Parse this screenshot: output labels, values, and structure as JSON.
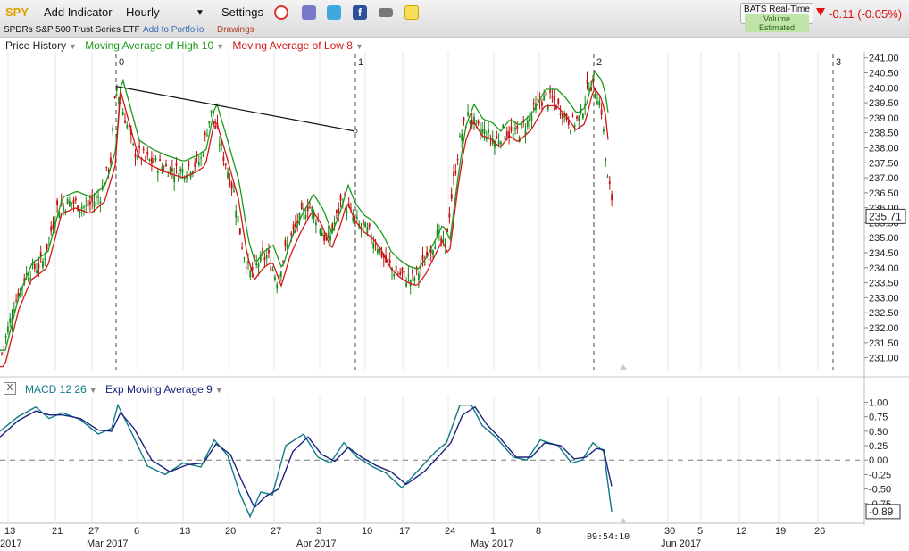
{
  "toolbar": {
    "symbol": "SPY",
    "add_indicator": "Add Indicator",
    "interval": "Hourly",
    "settings": "Settings",
    "security_name": "SPDRs S&P 500 Trust Series ETF",
    "add_to_portfolio": "Add to Portfolio",
    "drawings": "Drawings",
    "feed_line1": "BATS Real-Time",
    "feed_line2": "Volume Estimated",
    "change": "-0.11 (-0.05%)"
  },
  "icons": [
    "alarm-clock-icon",
    "database-icon",
    "twitter-icon",
    "facebook-icon",
    "camera-icon",
    "sticky-note-icon"
  ],
  "legend_price": [
    {
      "label": "Price History",
      "color": "#222222"
    },
    {
      "label": "Moving Average of High 10",
      "color": "#1a9a1a"
    },
    {
      "label": "Moving Average of Low 8",
      "color": "#d01818"
    }
  ],
  "legend_macd": [
    {
      "label": "MACD 12 26",
      "color": "#0f7a86"
    },
    {
      "label": "Exp Moving Average 9",
      "color": "#1a237e"
    }
  ],
  "cursor_time": "09:54:10",
  "chart_data": [
    {
      "type": "candlestick",
      "y_ticks": [
        "241.00",
        "240.50",
        "240.00",
        "239.50",
        "239.00",
        "238.50",
        "238.00",
        "237.50",
        "237.00",
        "236.50",
        "236.00",
        "235.50",
        "235.00",
        "234.50",
        "234.00",
        "233.50",
        "233.00",
        "232.50",
        "232.00",
        "231.50",
        "231.00"
      ],
      "ylim": [
        230.6,
        241.2
      ],
      "last_price": "235.71",
      "cycle_markers": [
        "0",
        "1",
        "2",
        "3"
      ],
      "path": [
        [
          0,
          230.9
        ],
        [
          16,
          232.8
        ],
        [
          30,
          233.8
        ],
        [
          48,
          234.2
        ],
        [
          64,
          236.0
        ],
        [
          80,
          236.2
        ],
        [
          96,
          236.0
        ],
        [
          112,
          236.4
        ],
        [
          124,
          237.6
        ],
        [
          130,
          240.1
        ],
        [
          140,
          239.0
        ],
        [
          150,
          237.9
        ],
        [
          165,
          237.6
        ],
        [
          180,
          237.4
        ],
        [
          200,
          237.2
        ],
        [
          215,
          237.4
        ],
        [
          225,
          237.6
        ],
        [
          236,
          239.2
        ],
        [
          246,
          238.2
        ],
        [
          262,
          236.5
        ],
        [
          272,
          234.6
        ],
        [
          280,
          233.8
        ],
        [
          290,
          234.2
        ],
        [
          300,
          234.4
        ],
        [
          310,
          233.6
        ],
        [
          320,
          234.6
        ],
        [
          332,
          235.4
        ],
        [
          345,
          236.1
        ],
        [
          356,
          235.6
        ],
        [
          366,
          234.8
        ],
        [
          376,
          235.6
        ],
        [
          384,
          236.4
        ],
        [
          392,
          235.8
        ],
        [
          402,
          235.4
        ],
        [
          412,
          235.2
        ],
        [
          422,
          234.8
        ],
        [
          432,
          234.2
        ],
        [
          442,
          233.9
        ],
        [
          452,
          233.7
        ],
        [
          462,
          233.6
        ],
        [
          472,
          234.0
        ],
        [
          482,
          234.6
        ],
        [
          490,
          235.1
        ],
        [
          498,
          234.6
        ],
        [
          508,
          236.9
        ],
        [
          516,
          238.4
        ],
        [
          525,
          239.1
        ],
        [
          535,
          238.6
        ],
        [
          545,
          238.5
        ],
        [
          555,
          238.2
        ],
        [
          565,
          238.6
        ],
        [
          575,
          238.4
        ],
        [
          590,
          238.8
        ],
        [
          605,
          239.6
        ],
        [
          618,
          239.6
        ],
        [
          628,
          239.3
        ],
        [
          640,
          238.8
        ],
        [
          650,
          239.0
        ],
        [
          660,
          240.2
        ],
        [
          668,
          239.9
        ],
        [
          674,
          239.2
        ],
        [
          680,
          237.0
        ],
        [
          686,
          236.2
        ]
      ],
      "ma_high_offset": 0.35,
      "ma_low_offset": -0.2
    },
    {
      "type": "line",
      "y_ticks": [
        "1.00",
        "0.75",
        "0.50",
        "0.25",
        "0.00",
        "-0.25",
        "-0.50",
        "-0.75"
      ],
      "ylim": [
        -1.0,
        1.1
      ],
      "last_value": "-0.89",
      "series": [
        {
          "name": "MACD 12 26",
          "color": "#0f7a86",
          "points": [
            [
              0,
              0.5
            ],
            [
              20,
              0.75
            ],
            [
              40,
              0.92
            ],
            [
              55,
              0.72
            ],
            [
              70,
              0.82
            ],
            [
              90,
              0.7
            ],
            [
              110,
              0.45
            ],
            [
              125,
              0.55
            ],
            [
              132,
              0.95
            ],
            [
              145,
              0.55
            ],
            [
              165,
              -0.1
            ],
            [
              185,
              -0.25
            ],
            [
              205,
              -0.05
            ],
            [
              225,
              -0.12
            ],
            [
              240,
              0.35
            ],
            [
              255,
              0.08
            ],
            [
              268,
              -0.55
            ],
            [
              280,
              -0.98
            ],
            [
              292,
              -0.55
            ],
            [
              305,
              -0.6
            ],
            [
              320,
              0.25
            ],
            [
              340,
              0.45
            ],
            [
              356,
              0.05
            ],
            [
              370,
              -0.05
            ],
            [
              385,
              0.3
            ],
            [
              400,
              0.05
            ],
            [
              418,
              -0.12
            ],
            [
              432,
              -0.22
            ],
            [
              450,
              -0.48
            ],
            [
              470,
              -0.15
            ],
            [
              488,
              0.15
            ],
            [
              500,
              0.3
            ],
            [
              515,
              0.95
            ],
            [
              528,
              0.95
            ],
            [
              540,
              0.6
            ],
            [
              555,
              0.4
            ],
            [
              575,
              0.05
            ],
            [
              590,
              0.0
            ],
            [
              605,
              0.35
            ],
            [
              625,
              0.25
            ],
            [
              640,
              -0.05
            ],
            [
              652,
              0.0
            ],
            [
              664,
              0.3
            ],
            [
              676,
              0.15
            ],
            [
              685,
              -0.89
            ]
          ]
        },
        {
          "name": "Exp Moving Average 9",
          "color": "#1a237e",
          "points": [
            [
              0,
              0.4
            ],
            [
              20,
              0.68
            ],
            [
              40,
              0.85
            ],
            [
              55,
              0.78
            ],
            [
              70,
              0.78
            ],
            [
              90,
              0.72
            ],
            [
              110,
              0.52
            ],
            [
              125,
              0.5
            ],
            [
              135,
              0.82
            ],
            [
              150,
              0.55
            ],
            [
              170,
              0.0
            ],
            [
              190,
              -0.2
            ],
            [
              210,
              -0.08
            ],
            [
              228,
              -0.05
            ],
            [
              242,
              0.28
            ],
            [
              258,
              0.1
            ],
            [
              272,
              -0.4
            ],
            [
              285,
              -0.82
            ],
            [
              298,
              -0.62
            ],
            [
              312,
              -0.5
            ],
            [
              328,
              0.15
            ],
            [
              345,
              0.4
            ],
            [
              360,
              0.1
            ],
            [
              375,
              -0.02
            ],
            [
              390,
              0.22
            ],
            [
              405,
              0.05
            ],
            [
              422,
              -0.1
            ],
            [
              438,
              -0.2
            ],
            [
              455,
              -0.42
            ],
            [
              475,
              -0.2
            ],
            [
              492,
              0.08
            ],
            [
              505,
              0.3
            ],
            [
              518,
              0.78
            ],
            [
              532,
              0.92
            ],
            [
              545,
              0.62
            ],
            [
              560,
              0.38
            ],
            [
              578,
              0.05
            ],
            [
              595,
              0.05
            ],
            [
              610,
              0.3
            ],
            [
              628,
              0.25
            ],
            [
              643,
              0.02
            ],
            [
              656,
              0.05
            ],
            [
              668,
              0.2
            ],
            [
              676,
              0.18
            ],
            [
              685,
              -0.45
            ]
          ]
        }
      ]
    }
  ],
  "x_axis": {
    "day_labels": [
      {
        "x": 9,
        "text": "13"
      },
      {
        "x": 62,
        "text": "21"
      },
      {
        "x": 103,
        "text": "27"
      },
      {
        "x": 154,
        "text": "6"
      },
      {
        "x": 205,
        "text": "13"
      },
      {
        "x": 256,
        "text": "20"
      },
      {
        "x": 307,
        "text": "27"
      },
      {
        "x": 358,
        "text": "3"
      },
      {
        "x": 409,
        "text": "10"
      },
      {
        "x": 451,
        "text": "17"
      },
      {
        "x": 502,
        "text": "24"
      },
      {
        "x": 553,
        "text": "1"
      },
      {
        "x": 604,
        "text": "8"
      },
      {
        "x": 748,
        "text": "30"
      },
      {
        "x": 785,
        "text": "5"
      },
      {
        "x": 828,
        "text": "12"
      },
      {
        "x": 872,
        "text": "19"
      },
      {
        "x": 916,
        "text": "26"
      }
    ],
    "month_labels": [
      {
        "x": 6,
        "text": "2017"
      },
      {
        "x": 123,
        "text": "Mar 2017"
      },
      {
        "x": 358,
        "text": "Apr 2017"
      },
      {
        "x": 553,
        "text": "May 2017"
      },
      {
        "x": 766,
        "text": "Jun 2017"
      }
    ]
  }
}
